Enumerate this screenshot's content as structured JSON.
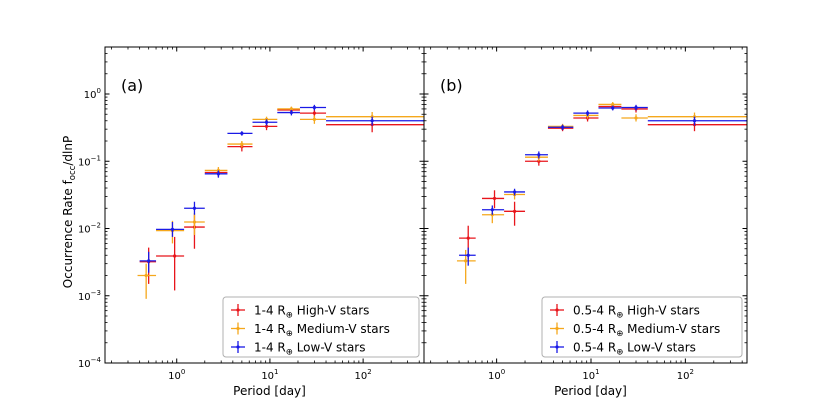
{
  "figure": {
    "ylabel_main": "Occurrence Rate f",
    "ylabel_sub": "occ",
    "ylabel_tail": "/dlnP"
  },
  "chart_data": [
    {
      "type": "scatter",
      "panel_label": "(a)",
      "xlabel": "Period [day]",
      "xscale": "log",
      "yscale": "log",
      "xlim": [
        0.17,
        450
      ],
      "ylim": [
        0.0001,
        5
      ],
      "x_ticks": [
        {
          "value": 1,
          "base": "10",
          "exp": "0"
        },
        {
          "value": 10,
          "base": "10",
          "exp": "1"
        },
        {
          "value": 100,
          "base": "10",
          "exp": "2"
        }
      ],
      "y_ticks": [
        {
          "value": 0.0001,
          "base": "10",
          "exp": "−4"
        },
        {
          "value": 0.001,
          "base": "10",
          "exp": "−3"
        },
        {
          "value": 0.01,
          "base": "10",
          "exp": "−2"
        },
        {
          "value": 0.1,
          "base": "10",
          "exp": "−1"
        },
        {
          "value": 1,
          "base": "10",
          "exp": "0"
        }
      ],
      "legend_position": "lower-right",
      "series": [
        {
          "name": "1-4 R⊕ High-V stars",
          "label_main": "1-4 R",
          "label_sub": "⊕",
          "label_tail": " High-V stars",
          "color": "#e8151b",
          "points": [
            {
              "x": 0.5,
              "xlo": 0.4,
              "xhi": 0.6,
              "y": 0.0032,
              "ylo": 0.0015,
              "yhi": 0.0052
            },
            {
              "x": 0.95,
              "xlo": 0.6,
              "xhi": 1.2,
              "y": 0.0039,
              "ylo": 0.0012,
              "yhi": 0.0075
            },
            {
              "x": 1.55,
              "xlo": 1.2,
              "xhi": 2.0,
              "y": 0.0105,
              "ylo": 0.005,
              "yhi": 0.016
            },
            {
              "x": 2.8,
              "xlo": 2.0,
              "xhi": 3.5,
              "y": 0.068,
              "ylo": 0.058,
              "yhi": 0.078
            },
            {
              "x": 5.0,
              "xlo": 3.5,
              "xhi": 6.5,
              "y": 0.165,
              "ylo": 0.14,
              "yhi": 0.19
            },
            {
              "x": 9.2,
              "xlo": 6.5,
              "xhi": 12.0,
              "y": 0.33,
              "ylo": 0.29,
              "yhi": 0.38
            },
            {
              "x": 17.0,
              "xlo": 12.0,
              "xhi": 21.0,
              "y": 0.58,
              "ylo": 0.52,
              "yhi": 0.64
            },
            {
              "x": 30.0,
              "xlo": 21.0,
              "xhi": 40.0,
              "y": 0.52,
              "ylo": 0.42,
              "yhi": 0.62
            },
            {
              "x": 125.0,
              "xlo": 40.0,
              "xhi": 450.0,
              "y": 0.35,
              "ylo": 0.27,
              "yhi": 0.43
            }
          ]
        },
        {
          "name": "1-4 R⊕ Medium-V stars",
          "label_main": "1-4 R",
          "label_sub": "⊕",
          "label_tail": " Medium-V stars",
          "color": "#f5a81c",
          "points": [
            {
              "x": 0.47,
              "xlo": 0.38,
              "xhi": 0.6,
              "y": 0.002,
              "ylo": 0.0009,
              "yhi": 0.003
            },
            {
              "x": 0.9,
              "xlo": 0.6,
              "xhi": 1.2,
              "y": 0.0093,
              "ylo": 0.006,
              "yhi": 0.013
            },
            {
              "x": 1.55,
              "xlo": 1.2,
              "xhi": 2.0,
              "y": 0.0125,
              "ylo": 0.008,
              "yhi": 0.017
            },
            {
              "x": 2.8,
              "xlo": 2.0,
              "xhi": 3.5,
              "y": 0.073,
              "ylo": 0.064,
              "yhi": 0.082
            },
            {
              "x": 5.0,
              "xlo": 3.5,
              "xhi": 6.5,
              "y": 0.18,
              "ylo": 0.16,
              "yhi": 0.2
            },
            {
              "x": 9.2,
              "xlo": 6.5,
              "xhi": 12.0,
              "y": 0.42,
              "ylo": 0.38,
              "yhi": 0.46
            },
            {
              "x": 17.0,
              "xlo": 12.0,
              "xhi": 21.0,
              "y": 0.6,
              "ylo": 0.55,
              "yhi": 0.65
            },
            {
              "x": 30.0,
              "xlo": 21.0,
              "xhi": 40.0,
              "y": 0.42,
              "ylo": 0.36,
              "yhi": 0.48
            },
            {
              "x": 125.0,
              "xlo": 40.0,
              "xhi": 450.0,
              "y": 0.46,
              "ylo": 0.38,
              "yhi": 0.54
            }
          ]
        },
        {
          "name": "1-4 R⊕ Low-V stars",
          "label_main": "1-4 R",
          "label_sub": "⊕",
          "label_tail": " Low-V stars",
          "color": "#1a1ae6",
          "points": [
            {
              "x": 0.5,
              "xlo": 0.4,
              "xhi": 0.6,
              "y": 0.0033,
              "ylo": 0.0022,
              "yhi": 0.0045
            },
            {
              "x": 0.9,
              "xlo": 0.6,
              "xhi": 1.2,
              "y": 0.0097,
              "ylo": 0.0075,
              "yhi": 0.0125
            },
            {
              "x": 1.55,
              "xlo": 1.2,
              "xhi": 2.0,
              "y": 0.02,
              "ylo": 0.016,
              "yhi": 0.025
            },
            {
              "x": 2.8,
              "xlo": 2.0,
              "xhi": 3.5,
              "y": 0.065,
              "ylo": 0.057,
              "yhi": 0.073
            },
            {
              "x": 5.0,
              "xlo": 3.5,
              "xhi": 6.5,
              "y": 0.26,
              "ylo": 0.24,
              "yhi": 0.28
            },
            {
              "x": 9.2,
              "xlo": 6.5,
              "xhi": 12.0,
              "y": 0.38,
              "ylo": 0.34,
              "yhi": 0.42
            },
            {
              "x": 17.0,
              "xlo": 12.0,
              "xhi": 21.0,
              "y": 0.53,
              "ylo": 0.48,
              "yhi": 0.58
            },
            {
              "x": 30.0,
              "xlo": 21.0,
              "xhi": 40.0,
              "y": 0.63,
              "ylo": 0.57,
              "yhi": 0.69
            },
            {
              "x": 125.0,
              "xlo": 40.0,
              "xhi": 450.0,
              "y": 0.4,
              "ylo": 0.34,
              "yhi": 0.46
            }
          ]
        }
      ]
    },
    {
      "type": "scatter",
      "panel_label": "(b)",
      "xlabel": "Period [day]",
      "xscale": "log",
      "yscale": "log",
      "xlim": [
        0.17,
        450
      ],
      "ylim": [
        0.0001,
        5
      ],
      "x_ticks": [
        {
          "value": 1,
          "base": "10",
          "exp": "0"
        },
        {
          "value": 10,
          "base": "10",
          "exp": "1"
        },
        {
          "value": 100,
          "base": "10",
          "exp": "2"
        }
      ],
      "y_ticks": [],
      "legend_position": "lower-right",
      "series": [
        {
          "name": "0.5-4 R⊕ High-V stars",
          "label_main": "0.5-4 R",
          "label_sub": "⊕",
          "label_tail": " High-V stars",
          "color": "#e8151b",
          "points": [
            {
              "x": 0.5,
              "xlo": 0.4,
              "xhi": 0.6,
              "y": 0.0072,
              "ylo": 0.0035,
              "yhi": 0.011
            },
            {
              "x": 0.95,
              "xlo": 0.7,
              "xhi": 1.2,
              "y": 0.028,
              "ylo": 0.02,
              "yhi": 0.037
            },
            {
              "x": 1.55,
              "xlo": 1.2,
              "xhi": 2.0,
              "y": 0.018,
              "ylo": 0.011,
              "yhi": 0.025
            },
            {
              "x": 2.8,
              "xlo": 2.0,
              "xhi": 3.5,
              "y": 0.1,
              "ylo": 0.086,
              "yhi": 0.114
            },
            {
              "x": 5.0,
              "xlo": 3.5,
              "xhi": 6.5,
              "y": 0.31,
              "ylo": 0.28,
              "yhi": 0.34
            },
            {
              "x": 9.2,
              "xlo": 6.5,
              "xhi": 12.0,
              "y": 0.44,
              "ylo": 0.39,
              "yhi": 0.49
            },
            {
              "x": 17.0,
              "xlo": 12.0,
              "xhi": 21.0,
              "y": 0.65,
              "ylo": 0.59,
              "yhi": 0.72
            },
            {
              "x": 30.0,
              "xlo": 21.0,
              "xhi": 40.0,
              "y": 0.6,
              "ylo": 0.53,
              "yhi": 0.67
            },
            {
              "x": 125.0,
              "xlo": 40.0,
              "xhi": 450.0,
              "y": 0.35,
              "ylo": 0.28,
              "yhi": 0.42
            }
          ]
        },
        {
          "name": "0.5-4 R⊕ Medium-V stars",
          "label_main": "0.5-4 R",
          "label_sub": "⊕",
          "label_tail": " Medium-V stars",
          "color": "#f5a81c",
          "points": [
            {
              "x": 0.47,
              "xlo": 0.38,
              "xhi": 0.6,
              "y": 0.0033,
              "ylo": 0.0015,
              "yhi": 0.0048
            },
            {
              "x": 0.9,
              "xlo": 0.7,
              "xhi": 1.2,
              "y": 0.016,
              "ylo": 0.012,
              "yhi": 0.02
            },
            {
              "x": 1.55,
              "xlo": 1.2,
              "xhi": 2.0,
              "y": 0.032,
              "ylo": 0.027,
              "yhi": 0.037
            },
            {
              "x": 2.8,
              "xlo": 2.0,
              "xhi": 3.5,
              "y": 0.115,
              "ylo": 0.1,
              "yhi": 0.13
            },
            {
              "x": 5.0,
              "xlo": 3.5,
              "xhi": 6.5,
              "y": 0.33,
              "ylo": 0.3,
              "yhi": 0.36
            },
            {
              "x": 9.2,
              "xlo": 6.5,
              "xhi": 12.0,
              "y": 0.48,
              "ylo": 0.43,
              "yhi": 0.53
            },
            {
              "x": 17.0,
              "xlo": 12.0,
              "xhi": 21.0,
              "y": 0.7,
              "ylo": 0.64,
              "yhi": 0.76
            },
            {
              "x": 30.0,
              "xlo": 21.0,
              "xhi": 40.0,
              "y": 0.44,
              "ylo": 0.39,
              "yhi": 0.5
            },
            {
              "x": 125.0,
              "xlo": 40.0,
              "xhi": 450.0,
              "y": 0.46,
              "ylo": 0.39,
              "yhi": 0.53
            }
          ]
        },
        {
          "name": "0.5-4 R⊕ Low-V stars",
          "label_main": "0.5-4 R",
          "label_sub": "⊕",
          "label_tail": " Low-V stars",
          "color": "#1a1ae6",
          "points": [
            {
              "x": 0.5,
              "xlo": 0.4,
              "xhi": 0.6,
              "y": 0.004,
              "ylo": 0.0028,
              "yhi": 0.0052
            },
            {
              "x": 0.9,
              "xlo": 0.7,
              "xhi": 1.2,
              "y": 0.019,
              "ylo": 0.016,
              "yhi": 0.022
            },
            {
              "x": 1.55,
              "xlo": 1.2,
              "xhi": 2.0,
              "y": 0.035,
              "ylo": 0.031,
              "yhi": 0.039
            },
            {
              "x": 2.8,
              "xlo": 2.0,
              "xhi": 3.5,
              "y": 0.125,
              "ylo": 0.11,
              "yhi": 0.14
            },
            {
              "x": 5.0,
              "xlo": 3.5,
              "xhi": 6.5,
              "y": 0.32,
              "ylo": 0.29,
              "yhi": 0.35
            },
            {
              "x": 9.2,
              "xlo": 6.5,
              "xhi": 12.0,
              "y": 0.52,
              "ylo": 0.47,
              "yhi": 0.57
            },
            {
              "x": 17.0,
              "xlo": 12.0,
              "xhi": 21.0,
              "y": 0.62,
              "ylo": 0.57,
              "yhi": 0.67
            },
            {
              "x": 30.0,
              "xlo": 21.0,
              "xhi": 40.0,
              "y": 0.63,
              "ylo": 0.57,
              "yhi": 0.69
            },
            {
              "x": 125.0,
              "xlo": 40.0,
              "xhi": 450.0,
              "y": 0.4,
              "ylo": 0.34,
              "yhi": 0.46
            }
          ]
        }
      ]
    }
  ]
}
